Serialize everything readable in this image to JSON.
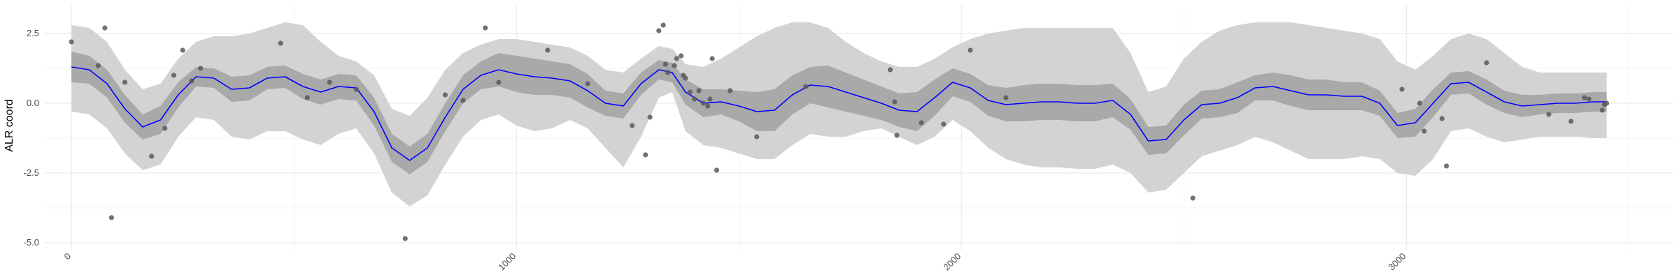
{
  "chart_data": {
    "type": "line",
    "ylabel": "ALR coord",
    "xlabel": "",
    "xlim": [
      -60,
      3600
    ],
    "ylim": [
      -5.25,
      3.5
    ],
    "x_ticks": [
      0,
      1000,
      2000,
      3000
    ],
    "x_tick_labels": [
      "0",
      "1000",
      "2000",
      "3000"
    ],
    "x_minor_ticks": [
      500,
      1500,
      2500,
      3500
    ],
    "y_ticks": [
      -5.0,
      -2.5,
      0.0,
      2.5
    ],
    "y_tick_labels": [
      "-5.0",
      "-2.5",
      "0.0",
      "2.5"
    ],
    "y_minor_ticks": [
      -3.75,
      -1.25,
      1.25
    ],
    "grid": true,
    "colors": {
      "mean_line": "#0000ff",
      "inner_band": "#a9a9a9",
      "outer_band": "#d3d3d3",
      "points": "#595959",
      "grid": "#ebebeb"
    },
    "series": [
      {
        "name": "mean",
        "style": "line",
        "x": [
          0,
          40,
          80,
          120,
          160,
          200,
          240,
          280,
          320,
          360,
          400,
          440,
          480,
          520,
          560,
          600,
          640,
          680,
          720,
          760,
          800,
          840,
          880,
          920,
          960,
          1000,
          1040,
          1080,
          1120,
          1160,
          1200,
          1240,
          1280,
          1320,
          1350,
          1380,
          1420,
          1460,
          1500,
          1540,
          1580,
          1620,
          1660,
          1700,
          1740,
          1780,
          1820,
          1860,
          1900,
          1940,
          1980,
          2020,
          2060,
          2100,
          2140,
          2180,
          2220,
          2260,
          2300,
          2340,
          2380,
          2420,
          2460,
          2500,
          2540,
          2580,
          2620,
          2660,
          2700,
          2740,
          2780,
          2820,
          2860,
          2900,
          2940,
          2980,
          3020,
          3060,
          3100,
          3140,
          3180,
          3220,
          3260,
          3300,
          3340,
          3380,
          3420,
          3450
        ],
        "values": [
          1.3,
          1.2,
          0.7,
          -0.2,
          -0.85,
          -0.6,
          0.3,
          0.95,
          0.9,
          0.5,
          0.55,
          0.9,
          0.95,
          0.6,
          0.4,
          0.6,
          0.55,
          -0.3,
          -1.6,
          -2.05,
          -1.6,
          -0.5,
          0.5,
          1.0,
          1.2,
          1.05,
          0.95,
          0.9,
          0.8,
          0.45,
          0.0,
          -0.1,
          0.7,
          1.2,
          1.1,
          0.4,
          0.0,
          0.05,
          -0.1,
          -0.3,
          -0.25,
          0.3,
          0.65,
          0.6,
          0.4,
          0.2,
          0.0,
          -0.25,
          -0.3,
          0.2,
          0.75,
          0.55,
          0.1,
          -0.05,
          0.0,
          0.05,
          0.05,
          0.0,
          0.0,
          0.1,
          -0.4,
          -1.35,
          -1.3,
          -0.6,
          -0.05,
          0.0,
          0.2,
          0.55,
          0.6,
          0.45,
          0.3,
          0.3,
          0.25,
          0.25,
          0.0,
          -0.8,
          -0.7,
          0.0,
          0.7,
          0.75,
          0.4,
          0.05,
          -0.1,
          -0.05,
          0.0,
          0.0,
          0.05,
          0.05
        ]
      },
      {
        "name": "inner_upper",
        "style": "band",
        "x": [
          0,
          40,
          80,
          120,
          160,
          200,
          240,
          280,
          320,
          360,
          400,
          440,
          480,
          520,
          560,
          600,
          640,
          680,
          720,
          760,
          800,
          840,
          880,
          920,
          960,
          1000,
          1040,
          1080,
          1120,
          1160,
          1200,
          1240,
          1280,
          1320,
          1350,
          1380,
          1420,
          1460,
          1500,
          1540,
          1580,
          1620,
          1660,
          1700,
          1740,
          1780,
          1820,
          1860,
          1900,
          1940,
          1980,
          2020,
          2060,
          2100,
          2140,
          2180,
          2220,
          2260,
          2300,
          2340,
          2380,
          2420,
          2460,
          2500,
          2540,
          2580,
          2620,
          2660,
          2700,
          2740,
          2780,
          2820,
          2860,
          2900,
          2940,
          2980,
          3020,
          3060,
          3100,
          3140,
          3180,
          3220,
          3260,
          3300,
          3340,
          3380,
          3420,
          3450
        ],
        "values": [
          1.85,
          1.7,
          1.2,
          0.3,
          -0.4,
          -0.1,
          0.75,
          1.3,
          1.25,
          0.95,
          1.0,
          1.3,
          1.35,
          1.05,
          0.85,
          1.05,
          1.0,
          0.2,
          -1.1,
          -1.55,
          -1.1,
          0.0,
          1.0,
          1.5,
          1.8,
          1.7,
          1.6,
          1.5,
          1.4,
          1.05,
          0.45,
          0.35,
          1.1,
          1.55,
          1.45,
          0.85,
          0.5,
          0.5,
          0.45,
          0.4,
          0.5,
          1.0,
          1.3,
          1.35,
          1.1,
          0.85,
          0.6,
          0.35,
          0.4,
          0.85,
          1.25,
          1.05,
          0.65,
          0.55,
          0.65,
          0.7,
          0.7,
          0.65,
          0.65,
          0.7,
          0.15,
          -0.85,
          -0.8,
          -0.05,
          0.45,
          0.5,
          0.75,
          1.0,
          1.1,
          1.0,
          0.85,
          0.85,
          0.75,
          0.75,
          0.45,
          -0.35,
          -0.2,
          0.5,
          1.1,
          1.15,
          0.85,
          0.45,
          0.3,
          0.3,
          0.35,
          0.35,
          0.4,
          0.4
        ]
      },
      {
        "name": "inner_lower",
        "style": "band",
        "x": [
          0,
          40,
          80,
          120,
          160,
          200,
          240,
          280,
          320,
          360,
          400,
          440,
          480,
          520,
          560,
          600,
          640,
          680,
          720,
          760,
          800,
          840,
          880,
          920,
          960,
          1000,
          1040,
          1080,
          1120,
          1160,
          1200,
          1240,
          1280,
          1320,
          1350,
          1380,
          1420,
          1460,
          1500,
          1540,
          1580,
          1620,
          1660,
          1700,
          1740,
          1780,
          1820,
          1860,
          1900,
          1940,
          1980,
          2020,
          2060,
          2100,
          2140,
          2180,
          2220,
          2260,
          2300,
          2340,
          2380,
          2420,
          2460,
          2500,
          2540,
          2580,
          2620,
          2660,
          2700,
          2740,
          2780,
          2820,
          2860,
          2900,
          2940,
          2980,
          3020,
          3060,
          3100,
          3140,
          3180,
          3220,
          3260,
          3300,
          3340,
          3380,
          3420,
          3450
        ],
        "values": [
          0.75,
          0.7,
          0.2,
          -0.7,
          -1.3,
          -1.1,
          -0.15,
          0.6,
          0.55,
          0.05,
          0.1,
          0.5,
          0.55,
          0.15,
          -0.05,
          0.15,
          0.1,
          -0.8,
          -2.1,
          -2.55,
          -2.1,
          -1.0,
          0.0,
          0.5,
          0.6,
          0.4,
          0.3,
          0.3,
          0.2,
          -0.15,
          -0.45,
          -0.55,
          0.3,
          0.85,
          0.75,
          -0.05,
          -0.5,
          -0.4,
          -0.65,
          -1.0,
          -1.0,
          -0.4,
          0.0,
          -0.15,
          -0.3,
          -0.45,
          -0.6,
          -0.85,
          -1.0,
          -0.45,
          0.25,
          0.05,
          -0.45,
          -0.65,
          -0.65,
          -0.6,
          -0.6,
          -0.65,
          -0.65,
          -0.5,
          -0.95,
          -1.85,
          -1.8,
          -1.15,
          -0.55,
          -0.5,
          -0.35,
          0.1,
          0.1,
          -0.1,
          -0.25,
          -0.25,
          -0.25,
          -0.25,
          -0.45,
          -1.25,
          -1.2,
          -0.5,
          0.3,
          0.35,
          -0.05,
          -0.35,
          -0.5,
          -0.4,
          -0.35,
          -0.35,
          -0.3,
          -0.3
        ]
      },
      {
        "name": "outer_upper",
        "style": "band",
        "x": [
          0,
          40,
          80,
          120,
          160,
          200,
          240,
          280,
          320,
          360,
          400,
          440,
          480,
          520,
          560,
          600,
          640,
          680,
          720,
          760,
          800,
          840,
          880,
          920,
          960,
          1000,
          1040,
          1080,
          1120,
          1160,
          1200,
          1240,
          1280,
          1320,
          1350,
          1380,
          1420,
          1460,
          1500,
          1540,
          1580,
          1620,
          1660,
          1700,
          1740,
          1780,
          1820,
          1860,
          1900,
          1940,
          1980,
          2020,
          2060,
          2100,
          2140,
          2180,
          2220,
          2260,
          2300,
          2340,
          2380,
          2420,
          2460,
          2500,
          2540,
          2580,
          2620,
          2660,
          2700,
          2740,
          2780,
          2820,
          2860,
          2900,
          2940,
          2980,
          3020,
          3060,
          3100,
          3140,
          3180,
          3220,
          3260,
          3300,
          3340,
          3380,
          3420,
          3450
        ],
        "values": [
          2.8,
          2.7,
          2.2,
          1.2,
          0.5,
          0.7,
          1.6,
          2.2,
          2.4,
          2.4,
          2.5,
          2.7,
          2.9,
          2.8,
          2.2,
          1.7,
          1.5,
          1.0,
          -0.2,
          -0.45,
          0.2,
          1.2,
          1.8,
          2.1,
          2.3,
          2.3,
          2.2,
          2.1,
          2.0,
          1.7,
          1.2,
          1.1,
          1.6,
          2.05,
          1.95,
          1.4,
          1.3,
          1.6,
          2.0,
          2.4,
          2.7,
          2.9,
          2.9,
          2.7,
          2.2,
          1.8,
          1.5,
          1.3,
          1.3,
          1.6,
          2.0,
          2.3,
          2.5,
          2.6,
          2.7,
          2.7,
          2.7,
          2.7,
          2.7,
          2.7,
          1.8,
          0.4,
          0.6,
          1.6,
          2.2,
          2.6,
          2.8,
          2.9,
          2.9,
          2.9,
          2.8,
          2.7,
          2.6,
          2.5,
          2.3,
          1.5,
          1.2,
          1.7,
          2.3,
          2.5,
          2.3,
          1.8,
          1.3,
          1.1,
          1.1,
          1.1,
          1.1,
          1.1
        ]
      },
      {
        "name": "outer_lower",
        "style": "band",
        "x": [
          0,
          40,
          80,
          120,
          160,
          200,
          240,
          280,
          320,
          360,
          400,
          440,
          480,
          520,
          560,
          600,
          640,
          680,
          720,
          760,
          800,
          840,
          880,
          920,
          960,
          1000,
          1040,
          1080,
          1120,
          1160,
          1200,
          1240,
          1280,
          1320,
          1350,
          1380,
          1420,
          1460,
          1500,
          1540,
          1580,
          1620,
          1660,
          1700,
          1740,
          1780,
          1820,
          1860,
          1900,
          1940,
          1980,
          2020,
          2060,
          2100,
          2140,
          2180,
          2220,
          2260,
          2300,
          2340,
          2380,
          2420,
          2460,
          2500,
          2540,
          2580,
          2620,
          2660,
          2700,
          2740,
          2780,
          2820,
          2860,
          2900,
          2940,
          2980,
          3020,
          3060,
          3100,
          3140,
          3180,
          3220,
          3260,
          3300,
          3340,
          3380,
          3420,
          3450
        ],
        "values": [
          -0.3,
          -0.4,
          -0.9,
          -1.8,
          -2.4,
          -2.2,
          -1.2,
          -0.5,
          -0.6,
          -1.2,
          -1.3,
          -1.0,
          -1.0,
          -1.3,
          -1.5,
          -1.1,
          -0.9,
          -1.8,
          -3.2,
          -3.7,
          -3.3,
          -2.2,
          -1.2,
          -0.6,
          -0.4,
          -0.8,
          -1.0,
          -0.9,
          -0.6,
          -0.9,
          -1.6,
          -2.3,
          -1.2,
          0.2,
          0.4,
          -1.0,
          -1.5,
          -1.6,
          -1.8,
          -2.0,
          -2.0,
          -1.5,
          -1.1,
          -1.2,
          -1.2,
          -1.0,
          -0.9,
          -1.2,
          -1.5,
          -1.2,
          -0.6,
          -1.0,
          -1.6,
          -2.0,
          -2.2,
          -2.3,
          -2.3,
          -2.35,
          -2.35,
          -2.2,
          -2.5,
          -3.2,
          -3.1,
          -2.5,
          -1.9,
          -1.7,
          -1.5,
          -1.2,
          -1.4,
          -1.7,
          -2.0,
          -2.0,
          -2.0,
          -1.9,
          -2.0,
          -2.5,
          -2.6,
          -2.0,
          -1.0,
          -0.9,
          -1.2,
          -1.4,
          -1.3,
          -1.2,
          -1.2,
          -1.2,
          -1.25,
          -1.25
        ]
      },
      {
        "name": "observations",
        "style": "points",
        "x": [
          0,
          60,
          75,
          90,
          120,
          180,
          210,
          230,
          250,
          270,
          290,
          470,
          530,
          580,
          640,
          750,
          840,
          880,
          930,
          960,
          1070,
          1160,
          1260,
          1290,
          1300,
          1320,
          1330,
          1335,
          1340,
          1355,
          1360,
          1370,
          1375,
          1380,
          1390,
          1400,
          1410,
          1420,
          1430,
          1435,
          1440,
          1450,
          1480,
          1540,
          1650,
          1840,
          1850,
          1855,
          1910,
          1960,
          2020,
          2100,
          2520,
          2990,
          3030,
          3040,
          3080,
          3090,
          3180,
          3320,
          3370,
          3400,
          3410,
          3440,
          3445,
          3450
        ],
        "values": [
          2.2,
          1.35,
          2.7,
          -4.1,
          0.75,
          -1.9,
          -0.9,
          1.0,
          1.9,
          0.8,
          1.25,
          2.15,
          0.2,
          0.75,
          0.5,
          -4.85,
          0.3,
          0.1,
          2.7,
          0.75,
          1.9,
          0.7,
          -0.8,
          -1.85,
          -0.5,
          2.6,
          2.8,
          1.4,
          1.1,
          1.35,
          1.6,
          1.7,
          1.0,
          0.9,
          0.4,
          0.15,
          0.45,
          0.0,
          -0.1,
          0.15,
          1.6,
          -2.4,
          0.45,
          -1.2,
          0.6,
          1.2,
          0.05,
          -1.15,
          -0.7,
          -0.75,
          1.9,
          0.2,
          -3.4,
          0.5,
          0.0,
          -1.0,
          -0.55,
          -2.25,
          1.45,
          -0.4,
          -0.65,
          0.2,
          0.15,
          -0.25,
          -0.05,
          0.0
        ]
      }
    ]
  }
}
